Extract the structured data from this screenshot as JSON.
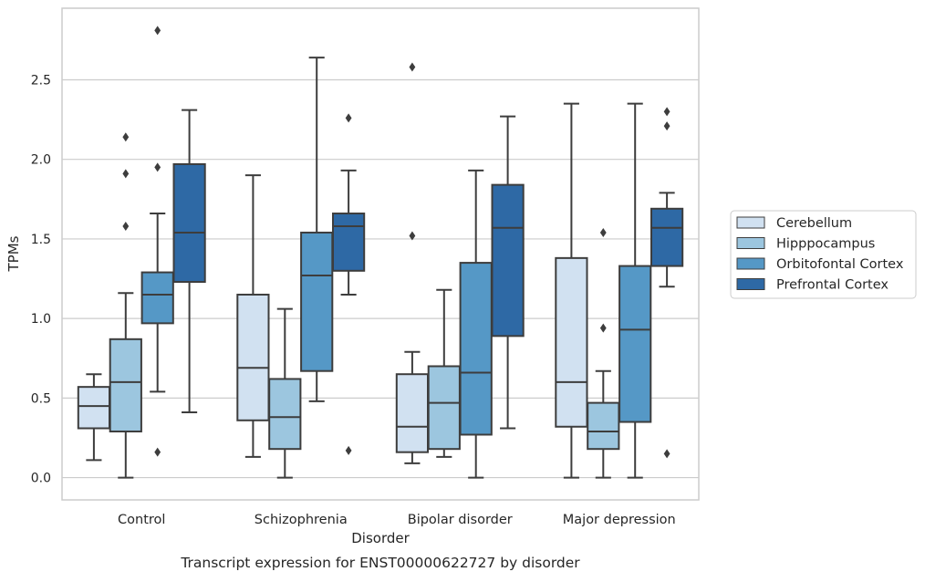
{
  "chart_data": {
    "type": "box",
    "caption": "Transcript expression for ENST00000622727 by disorder",
    "xlabel": "Disorder",
    "ylabel": "TPMs",
    "ylim": [
      -0.14,
      2.95
    ],
    "yticks": [
      0.0,
      0.5,
      1.0,
      1.5,
      2.0,
      2.5
    ],
    "grid": "horizontal",
    "legend_position": "right",
    "categories": [
      "Control",
      "Schizophrenia",
      "Bipolar disorder",
      "Major depression"
    ],
    "series": [
      {
        "name": "Cerebellum",
        "color": "#d1e1f1",
        "boxes": [
          {
            "whislo": 0.11,
            "q1": 0.31,
            "med": 0.45,
            "q3": 0.57,
            "whishi": 0.65,
            "fliers": []
          },
          {
            "whislo": 0.13,
            "q1": 0.36,
            "med": 0.69,
            "q3": 1.15,
            "whishi": 1.9,
            "fliers": []
          },
          {
            "whislo": 0.09,
            "q1": 0.16,
            "med": 0.32,
            "q3": 0.65,
            "whishi": 0.79,
            "fliers": [
              1.52,
              2.58
            ]
          },
          {
            "whislo": 0.0,
            "q1": 0.32,
            "med": 0.6,
            "q3": 1.38,
            "whishi": 2.35,
            "fliers": []
          }
        ]
      },
      {
        "name": "Hipppocampus",
        "color": "#9cc6df",
        "boxes": [
          {
            "whislo": 0.0,
            "q1": 0.29,
            "med": 0.6,
            "q3": 0.87,
            "whishi": 1.16,
            "fliers": [
              1.58,
              1.91,
              2.14
            ]
          },
          {
            "whislo": 0.0,
            "q1": 0.18,
            "med": 0.38,
            "q3": 0.62,
            "whishi": 1.06,
            "fliers": []
          },
          {
            "whislo": 0.13,
            "q1": 0.18,
            "med": 0.47,
            "q3": 0.7,
            "whishi": 1.18,
            "fliers": []
          },
          {
            "whislo": 0.0,
            "q1": 0.18,
            "med": 0.29,
            "q3": 0.47,
            "whishi": 0.67,
            "fliers": [
              0.94,
              1.54
            ]
          }
        ]
      },
      {
        "name": "Orbitofontal Cortex",
        "color": "#5598c6",
        "boxes": [
          {
            "whislo": 0.54,
            "q1": 0.97,
            "med": 1.15,
            "q3": 1.29,
            "whishi": 1.66,
            "fliers": [
              0.16,
              1.95,
              2.81
            ]
          },
          {
            "whislo": 0.48,
            "q1": 0.67,
            "med": 1.27,
            "q3": 1.54,
            "whishi": 2.64,
            "fliers": []
          },
          {
            "whislo": 0.0,
            "q1": 0.27,
            "med": 0.66,
            "q3": 1.35,
            "whishi": 1.93,
            "fliers": []
          },
          {
            "whislo": 0.0,
            "q1": 0.35,
            "med": 0.93,
            "q3": 1.33,
            "whishi": 2.35,
            "fliers": []
          }
        ]
      },
      {
        "name": "Prefrontal Cortex",
        "color": "#2e69a5",
        "boxes": [
          {
            "whislo": 0.41,
            "q1": 1.23,
            "med": 1.54,
            "q3": 1.97,
            "whishi": 2.31,
            "fliers": []
          },
          {
            "whislo": 1.15,
            "q1": 1.3,
            "med": 1.58,
            "q3": 1.66,
            "whishi": 1.93,
            "fliers": [
              0.17,
              2.26
            ]
          },
          {
            "whislo": 0.31,
            "q1": 0.89,
            "med": 1.57,
            "q3": 1.84,
            "whishi": 2.27,
            "fliers": []
          },
          {
            "whislo": 1.2,
            "q1": 1.33,
            "med": 1.57,
            "q3": 1.69,
            "whishi": 1.79,
            "fliers": [
              0.15,
              2.21,
              2.3
            ]
          }
        ]
      }
    ]
  }
}
